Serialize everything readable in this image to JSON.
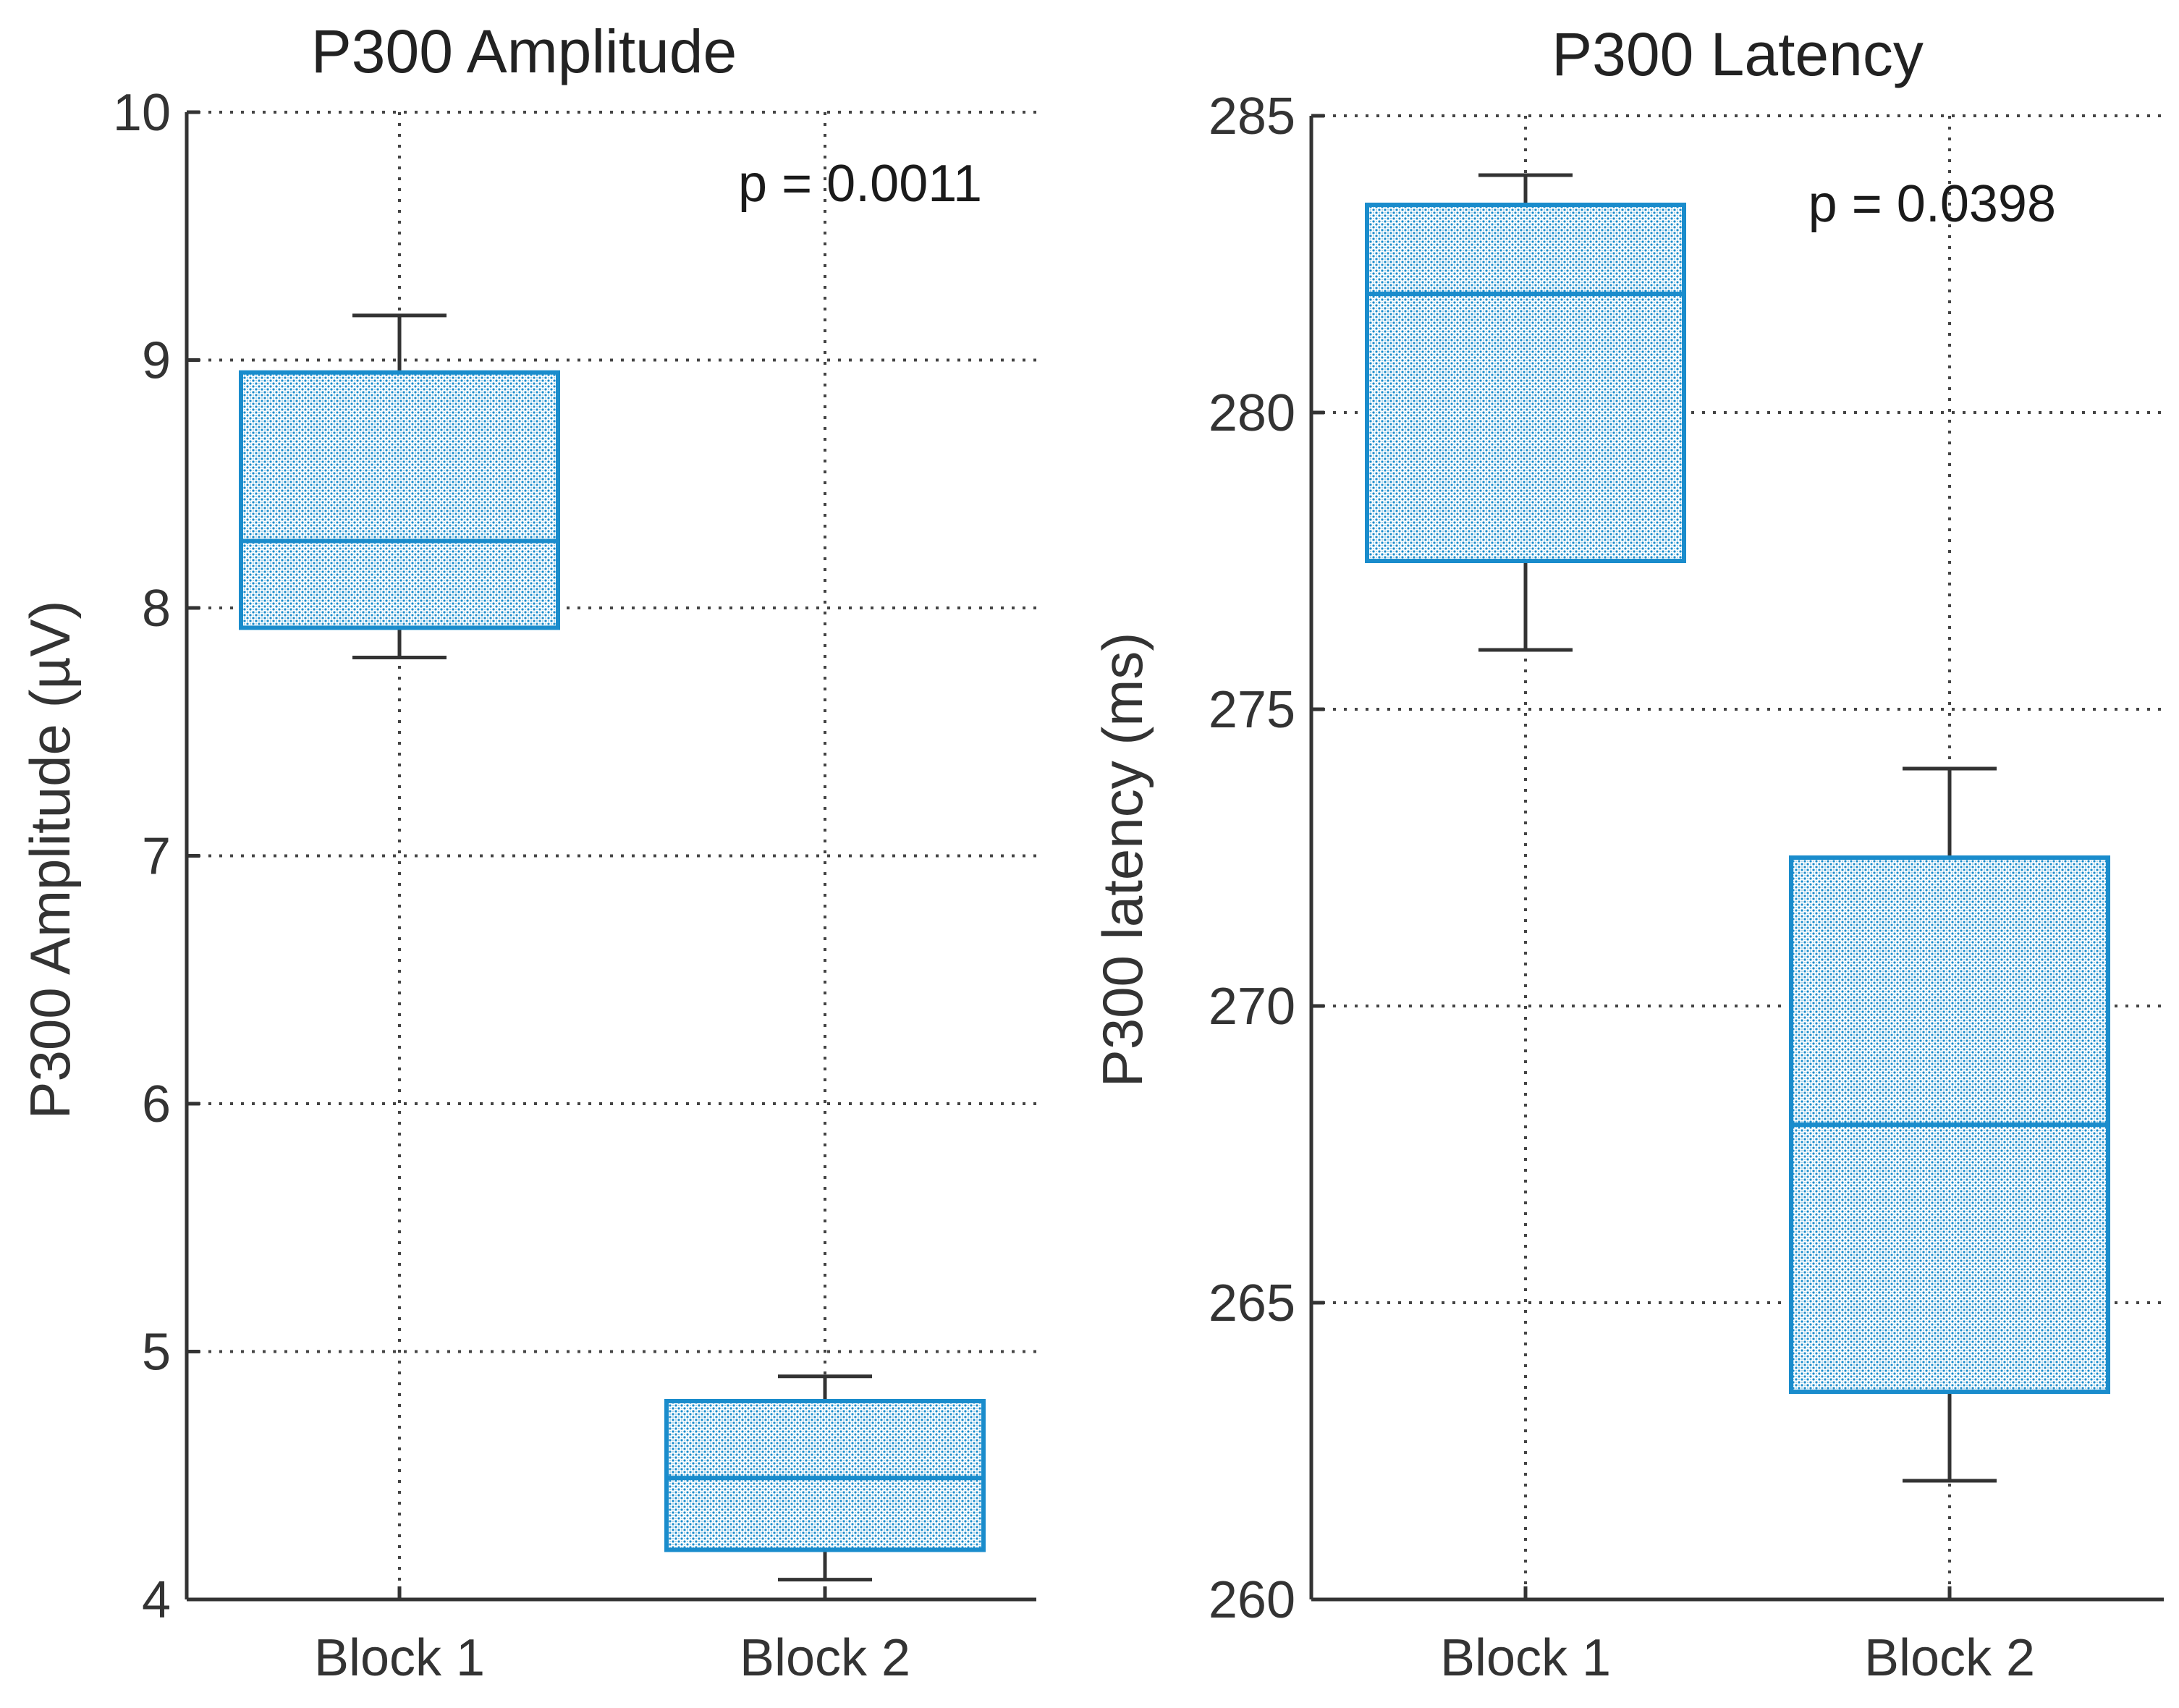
{
  "colors": {
    "box": "#1a8ccc",
    "box_fill": "#d7ecf8",
    "whisker": "#333333",
    "axis": "#333333",
    "grid": "#444444"
  },
  "chart_data": [
    {
      "type": "box",
      "title": "P300 Amplitude",
      "xlabel": "",
      "ylabel": "P300 Amplitude (µV)",
      "ylim": [
        4,
        10
      ],
      "yticks": [
        "4",
        "5",
        "6",
        "7",
        "8",
        "9",
        "10"
      ],
      "categories": [
        "Block 1",
        "Block 2"
      ],
      "grid": true,
      "annotation": "p = 0.0011",
      "boxes": [
        {
          "label": "Block 1",
          "whisker_low": 7.8,
          "q1": 7.92,
          "median": 8.27,
          "q3": 8.95,
          "whisker_high": 9.18
        },
        {
          "label": "Block 2",
          "whisker_low": 4.08,
          "q1": 4.2,
          "median": 4.49,
          "q3": 4.8,
          "whisker_high": 4.9
        }
      ]
    },
    {
      "type": "box",
      "title": "P300 Latency",
      "xlabel": "",
      "ylabel": "P300 latency (ms)",
      "ylim": [
        260,
        285
      ],
      "yticks": [
        "260",
        "265",
        "270",
        "275",
        "280",
        "285"
      ],
      "categories": [
        "Block 1",
        "Block 2"
      ],
      "grid": true,
      "annotation": "p = 0.0398",
      "boxes": [
        {
          "label": "Block 1",
          "whisker_low": 276,
          "q1": 277.5,
          "median": 282,
          "q3": 283.5,
          "whisker_high": 284
        },
        {
          "label": "Block 2",
          "whisker_low": 262,
          "q1": 263.5,
          "median": 268,
          "q3": 272.5,
          "whisker_high": 274
        }
      ]
    }
  ]
}
